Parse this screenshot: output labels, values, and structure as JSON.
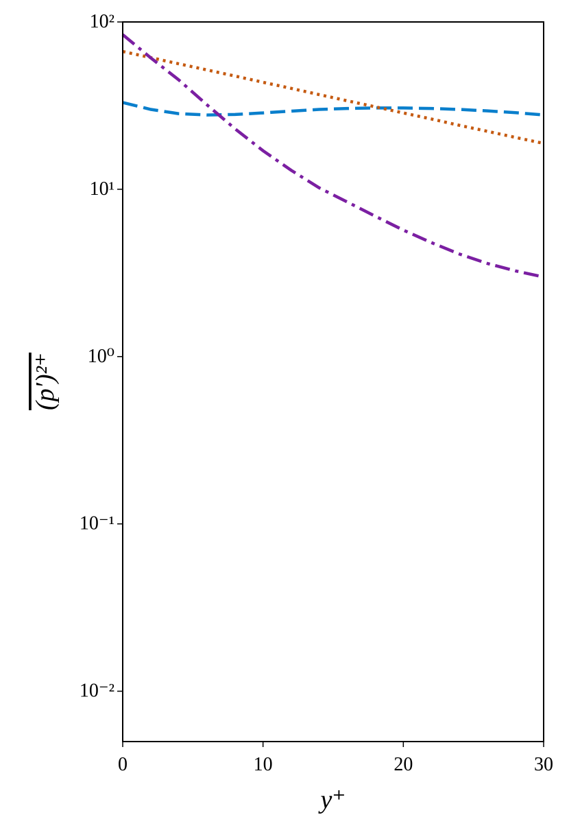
{
  "chart_data": {
    "type": "line",
    "x_label": "y⁺",
    "y_label": "(p′)²⁺",
    "x": [
      0,
      2,
      4,
      6,
      8,
      10,
      12,
      14,
      16,
      18,
      20,
      22,
      24,
      26,
      28,
      30
    ],
    "series": [
      {
        "color": "#0a7fcc",
        "style": "dashed",
        "values": [
          33,
          30,
          28.3,
          27.8,
          28,
          28.6,
          29.3,
          30,
          30.4,
          30.6,
          30.6,
          30.4,
          30,
          29.4,
          28.7,
          27.8
        ]
      },
      {
        "color": "#c55a11",
        "style": "dotted",
        "values": [
          66.6,
          61.2,
          56.2,
          51.7,
          47.5,
          43.6,
          40.1,
          36.8,
          33.8,
          31.1,
          28.6,
          26.3,
          24.1,
          22.2,
          20.4,
          18.8
        ]
      },
      {
        "color": "#7b1fa2",
        "style": "dashdot",
        "values": [
          84,
          61,
          45,
          32,
          23,
          17,
          13,
          10.2,
          8.4,
          6.9,
          5.7,
          4.8,
          4.1,
          3.6,
          3.25,
          2.99
        ]
      }
    ],
    "xlim": [
      0,
      30
    ],
    "xticks": [
      0,
      10,
      20,
      30
    ],
    "ylim": [
      0.005,
      100
    ],
    "log_y": true,
    "yticks": [
      {
        "value": 100,
        "label": "10²"
      },
      {
        "value": 10,
        "label": "10¹"
      },
      {
        "value": 1,
        "label": "10⁰"
      },
      {
        "value": 0.1,
        "label": "10⁻¹"
      },
      {
        "value": 0.01,
        "label": "10⁻²"
      }
    ],
    "grid": false
  }
}
